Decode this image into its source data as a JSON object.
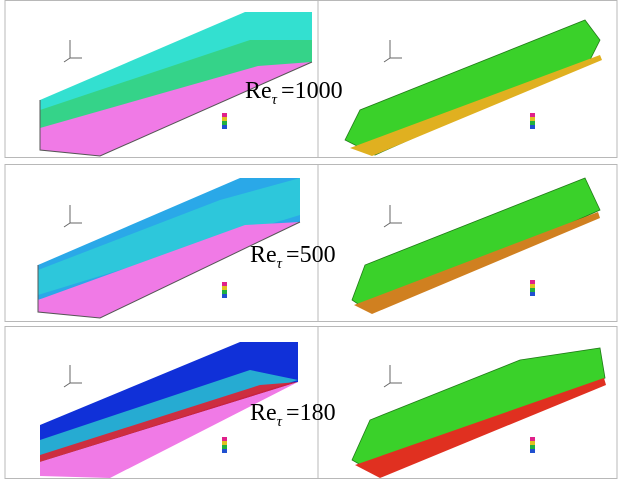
{
  "rows": [
    {
      "base": "Re",
      "sub": "τ",
      "value": "=1000"
    },
    {
      "base": "Re",
      "sub": "τ",
      "value": "=500"
    },
    {
      "base": "Re",
      "sub": "τ",
      "value": "=180"
    }
  ]
}
